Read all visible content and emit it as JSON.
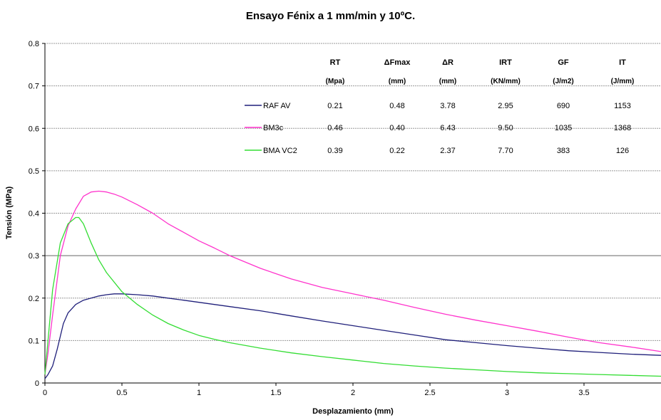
{
  "chart_data": {
    "type": "line",
    "title": "Ensayo Fénix a 1 mm/min y 10ºC.",
    "xlabel": "Desplazamiento (mm)",
    "ylabel": "Tensión (MPa)",
    "xlim": [
      0,
      4
    ],
    "ylim": [
      0,
      0.8
    ],
    "xticks": [
      "0",
      "0.5",
      "1",
      "1.5",
      "2",
      "2.5",
      "3",
      "3.5"
    ],
    "yticks": [
      "0",
      "0.1",
      "0.2",
      "0.3",
      "0.4",
      "0.5",
      "0.6",
      "0.7",
      "0.8"
    ],
    "grid": "horizontal",
    "series": [
      {
        "name": "RAF AV",
        "color": "#1f1f7a",
        "x": [
          0,
          0.02,
          0.05,
          0.08,
          0.1,
          0.12,
          0.15,
          0.2,
          0.25,
          0.3,
          0.35,
          0.4,
          0.45,
          0.5,
          0.6,
          0.7,
          0.8,
          0.9,
          1.0,
          1.2,
          1.4,
          1.6,
          1.8,
          2.0,
          2.2,
          2.4,
          2.6,
          2.8,
          3.0,
          3.2,
          3.4,
          3.6,
          3.8,
          4.0
        ],
        "y": [
          0.01,
          0.02,
          0.04,
          0.08,
          0.11,
          0.14,
          0.165,
          0.185,
          0.195,
          0.2,
          0.205,
          0.208,
          0.21,
          0.21,
          0.208,
          0.205,
          0.2,
          0.195,
          0.19,
          0.18,
          0.17,
          0.158,
          0.146,
          0.135,
          0.124,
          0.113,
          0.102,
          0.095,
          0.088,
          0.082,
          0.076,
          0.072,
          0.068,
          0.065
        ]
      },
      {
        "name": "BM3c",
        "color": "#ff33cc",
        "x": [
          0,
          0.02,
          0.05,
          0.1,
          0.15,
          0.2,
          0.25,
          0.3,
          0.35,
          0.4,
          0.45,
          0.5,
          0.6,
          0.7,
          0.8,
          0.9,
          1.0,
          1.1,
          1.2,
          1.4,
          1.6,
          1.8,
          2.0,
          2.2,
          2.4,
          2.6,
          2.8,
          3.0,
          3.2,
          3.4,
          3.6,
          3.8,
          4.0
        ],
        "y": [
          0.02,
          0.07,
          0.16,
          0.3,
          0.37,
          0.41,
          0.44,
          0.45,
          0.452,
          0.45,
          0.445,
          0.438,
          0.42,
          0.4,
          0.375,
          0.355,
          0.335,
          0.318,
          0.3,
          0.27,
          0.245,
          0.225,
          0.21,
          0.195,
          0.178,
          0.162,
          0.148,
          0.135,
          0.122,
          0.108,
          0.095,
          0.085,
          0.074
        ]
      },
      {
        "name": "BMA VC2",
        "color": "#33dd33",
        "x": [
          0,
          0.02,
          0.05,
          0.1,
          0.15,
          0.2,
          0.22,
          0.25,
          0.3,
          0.35,
          0.4,
          0.5,
          0.6,
          0.7,
          0.8,
          0.9,
          1.0,
          1.1,
          1.2,
          1.4,
          1.6,
          1.8,
          2.0,
          2.2,
          2.4,
          2.6,
          2.8,
          3.0,
          3.2,
          3.4,
          3.6,
          3.8,
          4.0
        ],
        "y": [
          0.02,
          0.1,
          0.22,
          0.33,
          0.375,
          0.39,
          0.39,
          0.375,
          0.33,
          0.29,
          0.26,
          0.215,
          0.185,
          0.16,
          0.14,
          0.125,
          0.112,
          0.103,
          0.095,
          0.082,
          0.071,
          0.062,
          0.054,
          0.046,
          0.04,
          0.035,
          0.031,
          0.027,
          0.024,
          0.022,
          0.02,
          0.018,
          0.016
        ]
      }
    ],
    "stats_table": {
      "headers": [
        "RT",
        "ΔFmax",
        "ΔR",
        "IRT",
        "GF",
        "IT"
      ],
      "units": [
        "(Mpa)",
        "(mm)",
        "(mm)",
        "(KN/mm)",
        "(J/m2)",
        "(J/mm)"
      ],
      "rows": [
        {
          "label": "RAF AV",
          "values": [
            "0.21",
            "0.48",
            "3.78",
            "2.95",
            "690",
            "1153"
          ]
        },
        {
          "label": "BM3c",
          "values": [
            "0.46",
            "0.40",
            "6.43",
            "9.50",
            "1035",
            "1368"
          ]
        },
        {
          "label": "BMA VC2",
          "values": [
            "0.39",
            "0.22",
            "2.37",
            "7.70",
            "383",
            "126"
          ]
        }
      ]
    }
  }
}
